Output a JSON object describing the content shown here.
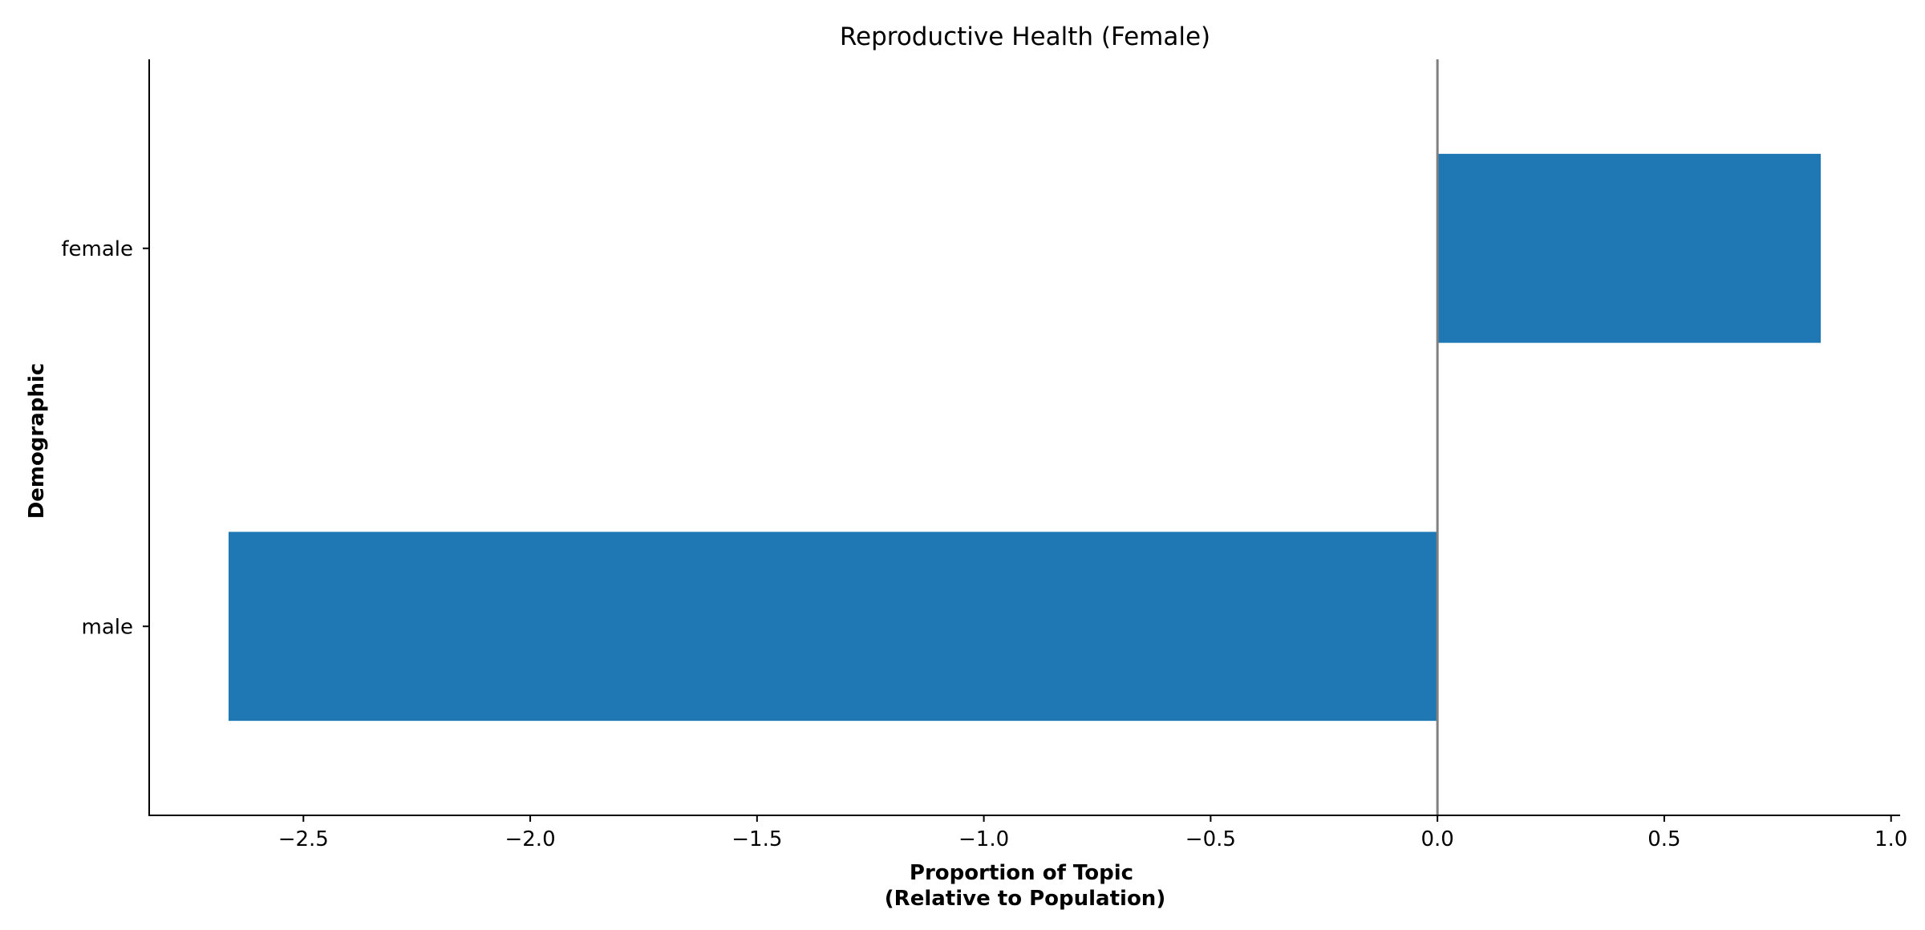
{
  "chart_data": {
    "type": "bar",
    "orientation": "horizontal",
    "title": "Reproductive Health (Female)",
    "xlabel_lines": [
      "Proportion of Topic",
      "(Relative to Population)"
    ],
    "ylabel": "Demographic",
    "categories": [
      "female",
      "male"
    ],
    "values": [
      0.845,
      -2.665
    ],
    "xlim": [
      -2.84,
      1.02
    ],
    "xticks": [
      -2.5,
      -2.0,
      -1.5,
      -1.0,
      -0.5,
      0.0,
      0.5,
      1.0
    ],
    "xtick_labels": [
      "−2.5",
      "−2.0",
      "−1.5",
      "−1.0",
      "−0.5",
      "0.0",
      "0.5",
      "1.0"
    ],
    "reference_line_x": 0.0,
    "grid": false,
    "legend": "none",
    "bar_color": "#1f77b4",
    "reference_line_color": "#808080"
  }
}
